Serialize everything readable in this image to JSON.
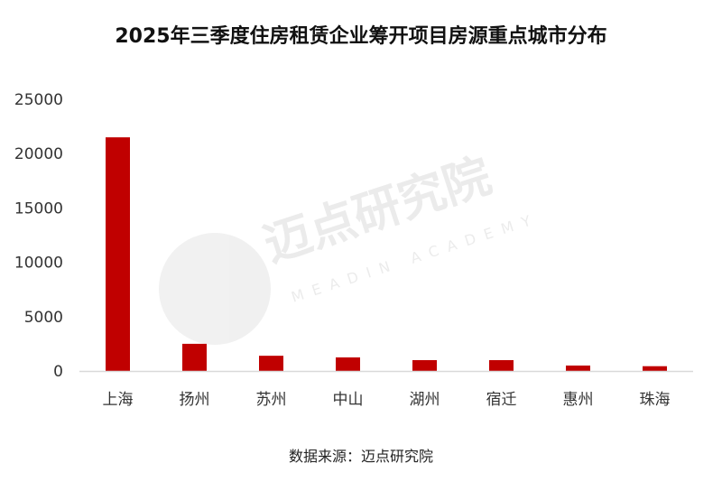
{
  "chart_data": {
    "type": "bar",
    "title": "2025年三季度住房租赁企业筹开项目房源重点城市分布",
    "categories": [
      "上海",
      "扬州",
      "苏州",
      "中山",
      "湖州",
      "宿迁",
      "惠州",
      "珠海"
    ],
    "values": [
      21500,
      2500,
      1400,
      1250,
      1000,
      1000,
      500,
      440
    ],
    "yticks": [
      0,
      5000,
      10000,
      15000,
      20000,
      25000
    ],
    "ylim": [
      0,
      25000
    ],
    "grid": false,
    "bar_color": "#C00000",
    "xlabel": "",
    "ylabel": ""
  },
  "source": "数据来源：迈点研究院",
  "watermark": {
    "text": "迈点研究院",
    "subtext": "MEADIN ACADEMY"
  }
}
